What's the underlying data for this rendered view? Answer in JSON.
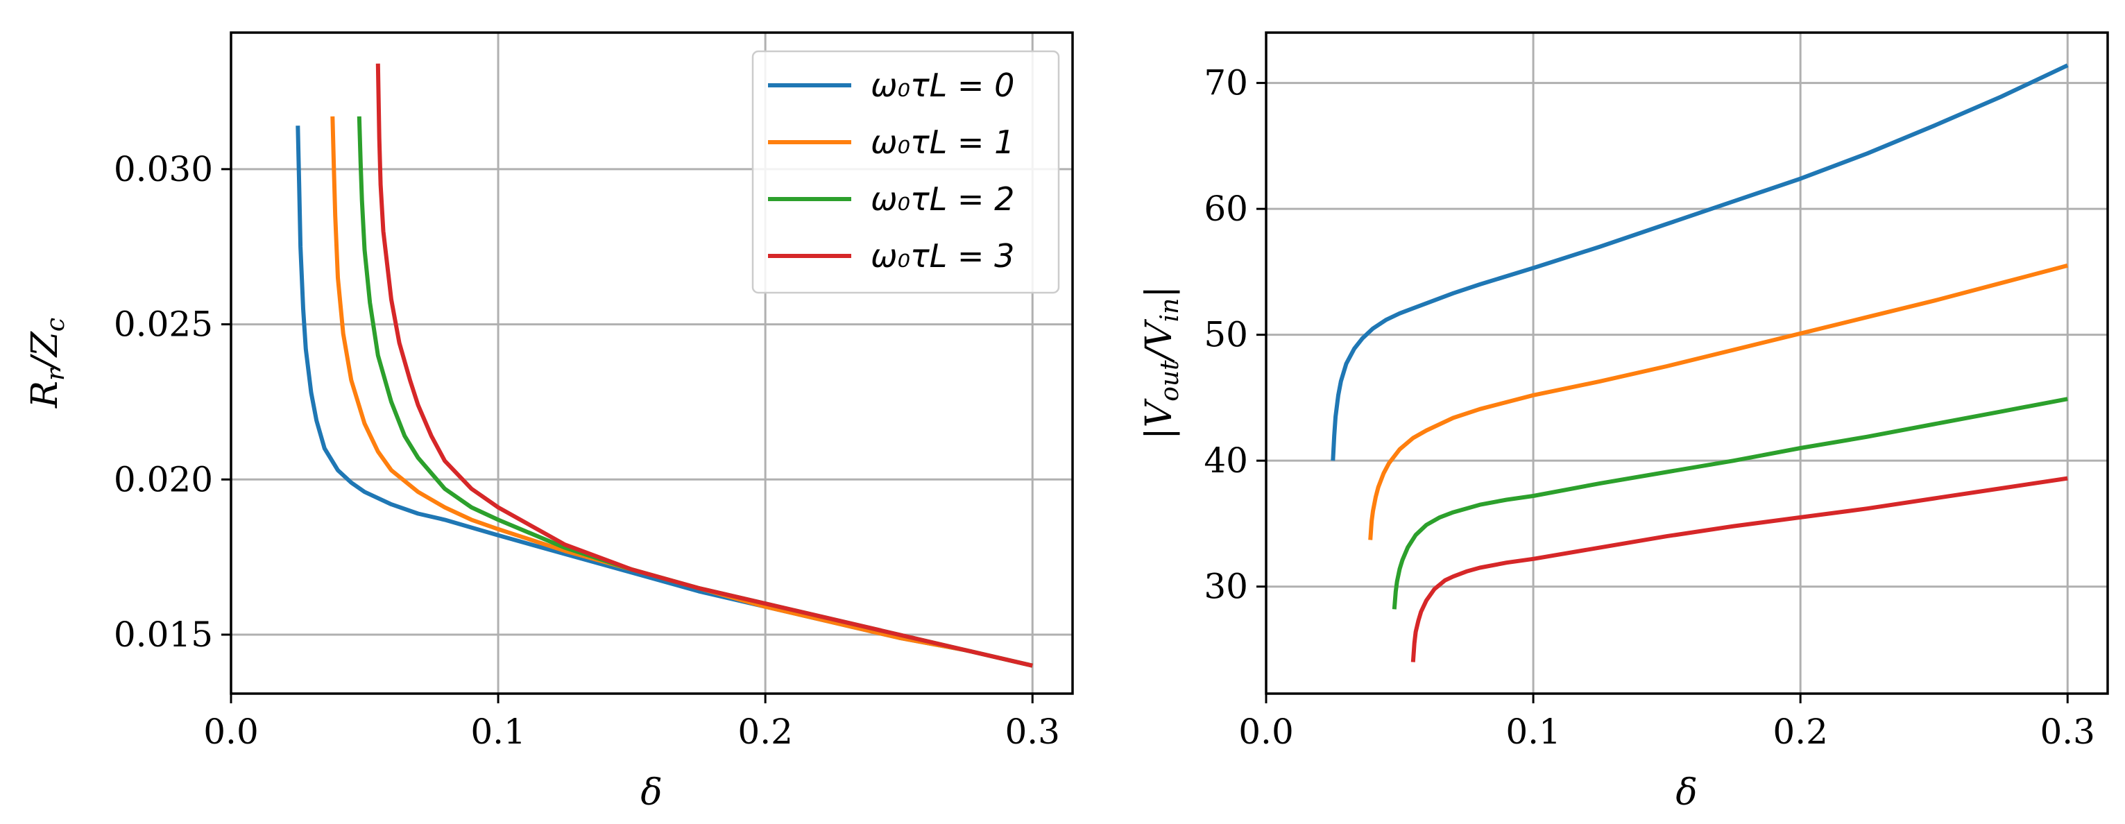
{
  "chart_data": [
    {
      "type": "line",
      "panel": "left",
      "xlabel": "δ",
      "ylabel": "R_r/Z_c",
      "xlim": [
        0.0,
        0.315
      ],
      "ylim": [
        0.0131,
        0.0344
      ],
      "xticks": [
        0.0,
        0.1,
        0.2,
        0.3
      ],
      "xtick_labels": [
        "0.0",
        "0.1",
        "0.2",
        "0.3"
      ],
      "yticks": [
        0.015,
        0.02,
        0.025,
        0.03
      ],
      "ytick_labels": [
        "0.015",
        "0.020",
        "0.025",
        "0.030"
      ],
      "grid": true,
      "legend_position": "top-right",
      "series": [
        {
          "name": "ω0τL = 0",
          "color": "#1f77b4",
          "x": [
            0.025,
            0.0255,
            0.026,
            0.027,
            0.028,
            0.03,
            0.032,
            0.035,
            0.04,
            0.045,
            0.05,
            0.06,
            0.07,
            0.08,
            0.1,
            0.125,
            0.15,
            0.175,
            0.2,
            0.225,
            0.25,
            0.275,
            0.3
          ],
          "y": [
            0.0314,
            0.0295,
            0.0275,
            0.0255,
            0.0242,
            0.0228,
            0.0219,
            0.021,
            0.0203,
            0.0199,
            0.0196,
            0.0192,
            0.0189,
            0.0187,
            0.0182,
            0.0176,
            0.017,
            0.0164,
            0.0159,
            0.0154,
            0.0149,
            0.0145,
            0.014
          ]
        },
        {
          "name": "ω0τL = 1",
          "color": "#ff7f0e",
          "x": [
            0.038,
            0.0385,
            0.039,
            0.04,
            0.042,
            0.045,
            0.05,
            0.055,
            0.06,
            0.07,
            0.08,
            0.09,
            0.1,
            0.125,
            0.15,
            0.175,
            0.2,
            0.225,
            0.25,
            0.275,
            0.3
          ],
          "y": [
            0.0317,
            0.03,
            0.0285,
            0.0265,
            0.0247,
            0.0232,
            0.0218,
            0.0209,
            0.0203,
            0.0196,
            0.0191,
            0.0187,
            0.0184,
            0.0177,
            0.0171,
            0.0165,
            0.0159,
            0.0154,
            0.0149,
            0.0145,
            0.014
          ]
        },
        {
          "name": "ω0τL = 2",
          "color": "#2ca02c",
          "x": [
            0.048,
            0.0485,
            0.049,
            0.05,
            0.052,
            0.055,
            0.06,
            0.065,
            0.07,
            0.08,
            0.09,
            0.1,
            0.125,
            0.15,
            0.175,
            0.2,
            0.225,
            0.25,
            0.275,
            0.3
          ],
          "y": [
            0.0317,
            0.0302,
            0.029,
            0.0274,
            0.0257,
            0.024,
            0.0225,
            0.0214,
            0.0207,
            0.0197,
            0.0191,
            0.0187,
            0.0178,
            0.0171,
            0.0165,
            0.016,
            0.0155,
            0.015,
            0.0145,
            0.014
          ]
        },
        {
          "name": "ω0τL = 3",
          "color": "#d62728",
          "x": [
            0.055,
            0.0555,
            0.056,
            0.057,
            0.06,
            0.063,
            0.067,
            0.07,
            0.075,
            0.08,
            0.09,
            0.1,
            0.125,
            0.15,
            0.175,
            0.2,
            0.225,
            0.25,
            0.275,
            0.3
          ],
          "y": [
            0.0334,
            0.031,
            0.0295,
            0.028,
            0.0258,
            0.0244,
            0.0232,
            0.0224,
            0.0214,
            0.0206,
            0.0197,
            0.0191,
            0.0179,
            0.0171,
            0.0165,
            0.016,
            0.0155,
            0.015,
            0.0145,
            0.014
          ]
        }
      ],
      "legend": [
        "ω₀τL = 0",
        "ω₀τL = 1",
        "ω₀τL = 2",
        "ω₀τL = 3"
      ]
    },
    {
      "type": "line",
      "panel": "right",
      "xlabel": "δ",
      "ylabel": "|V_out/V_in|",
      "xlim": [
        0.0,
        0.315
      ],
      "ylim": [
        21.5,
        74.0
      ],
      "xticks": [
        0.0,
        0.1,
        0.2,
        0.3
      ],
      "xtick_labels": [
        "0.0",
        "0.1",
        "0.2",
        "0.3"
      ],
      "yticks": [
        30,
        40,
        50,
        60,
        70
      ],
      "ytick_labels": [
        "30",
        "40",
        "50",
        "60",
        "70"
      ],
      "grid": true,
      "series": [
        {
          "name": "ω0τL = 0",
          "color": "#1f77b4",
          "x": [
            0.025,
            0.0255,
            0.026,
            0.027,
            0.028,
            0.03,
            0.033,
            0.036,
            0.04,
            0.045,
            0.05,
            0.06,
            0.07,
            0.08,
            0.1,
            0.125,
            0.15,
            0.175,
            0.2,
            0.225,
            0.25,
            0.275,
            0.3
          ],
          "y": [
            40.0,
            42.0,
            43.5,
            45.2,
            46.3,
            47.7,
            48.9,
            49.7,
            50.5,
            51.2,
            51.7,
            52.5,
            53.3,
            54.0,
            55.3,
            57.0,
            58.8,
            60.6,
            62.4,
            64.4,
            66.6,
            68.9,
            71.4
          ]
        },
        {
          "name": "ω0τL = 1",
          "color": "#ff7f0e",
          "x": [
            0.039,
            0.0395,
            0.04,
            0.041,
            0.042,
            0.044,
            0.046,
            0.05,
            0.055,
            0.06,
            0.07,
            0.08,
            0.1,
            0.125,
            0.15,
            0.175,
            0.2,
            0.225,
            0.25,
            0.275,
            0.3
          ],
          "y": [
            33.7,
            35.2,
            36.0,
            37.1,
            37.9,
            39.0,
            39.8,
            40.9,
            41.8,
            42.4,
            43.4,
            44.1,
            45.2,
            46.3,
            47.5,
            48.8,
            50.1,
            51.4,
            52.7,
            54.1,
            55.5
          ]
        },
        {
          "name": "ω0τL = 2",
          "color": "#2ca02c",
          "x": [
            0.048,
            0.0485,
            0.049,
            0.05,
            0.051,
            0.053,
            0.056,
            0.06,
            0.065,
            0.07,
            0.08,
            0.09,
            0.1,
            0.125,
            0.15,
            0.175,
            0.2,
            0.225,
            0.25,
            0.275,
            0.3
          ],
          "y": [
            28.2,
            29.6,
            30.4,
            31.4,
            32.1,
            33.1,
            34.1,
            34.9,
            35.5,
            35.9,
            36.5,
            36.9,
            37.2,
            38.2,
            39.1,
            40.0,
            41.0,
            41.9,
            42.9,
            43.9,
            44.9
          ]
        },
        {
          "name": "ω0τL = 3",
          "color": "#d62728",
          "x": [
            0.055,
            0.0555,
            0.056,
            0.057,
            0.058,
            0.06,
            0.063,
            0.067,
            0.07,
            0.075,
            0.08,
            0.09,
            0.1,
            0.125,
            0.15,
            0.175,
            0.2,
            0.225,
            0.25,
            0.275,
            0.3
          ],
          "y": [
            24.0,
            25.5,
            26.4,
            27.3,
            28.0,
            28.9,
            29.8,
            30.5,
            30.8,
            31.2,
            31.5,
            31.9,
            32.2,
            33.1,
            34.0,
            34.8,
            35.5,
            36.2,
            37.0,
            37.8,
            38.6
          ]
        }
      ]
    }
  ]
}
